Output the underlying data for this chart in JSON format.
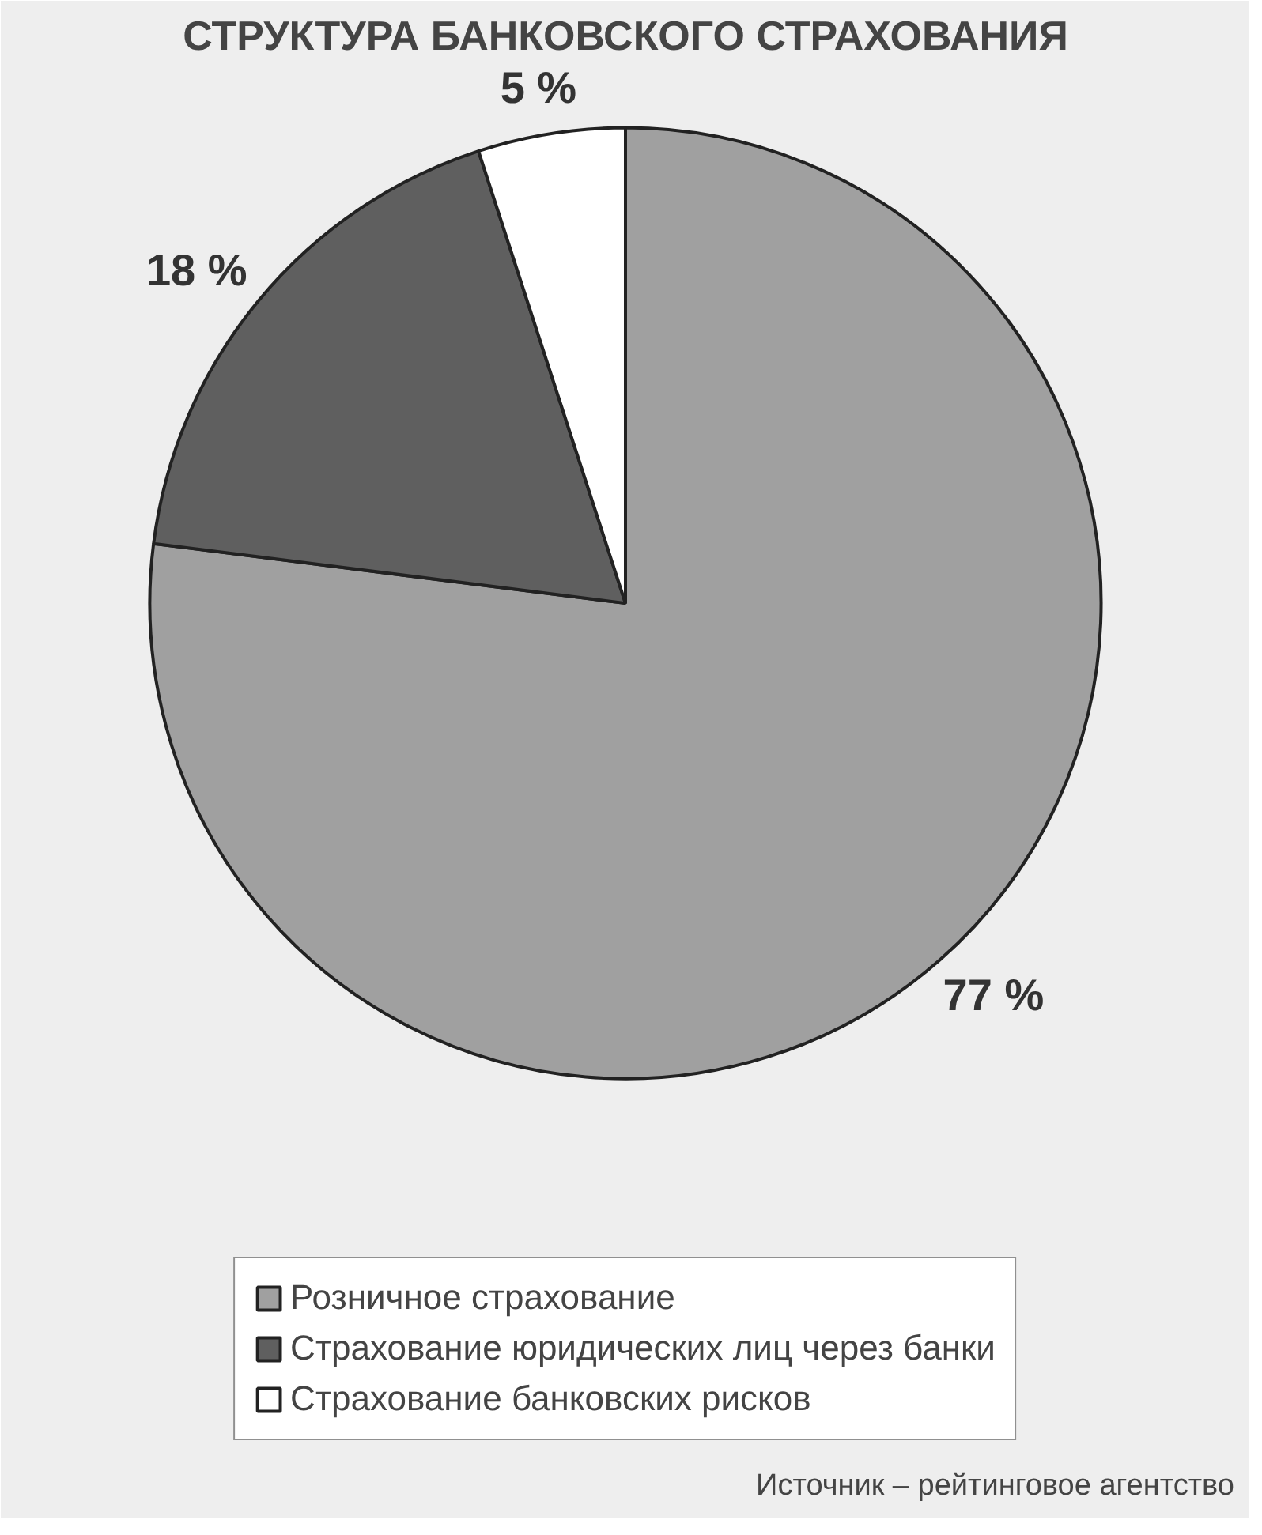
{
  "chart_data": {
    "type": "pie",
    "title": "СТРУКТУРА БАНКОВСКОГО СТРАХОВАНИЯ",
    "categories": [
      "Розничное страхование",
      "Страхование юридических лиц через банки",
      "Страхование банковских рисков"
    ],
    "values": [
      77,
      18,
      5
    ],
    "colors": [
      "#a0a0a0",
      "#5f5f5f",
      "#ffffff"
    ],
    "value_labels": [
      "77 %",
      "18 %",
      "5 %"
    ],
    "legend": "bottom",
    "annotations": [
      "Источник – рейтинговое агентство"
    ]
  }
}
